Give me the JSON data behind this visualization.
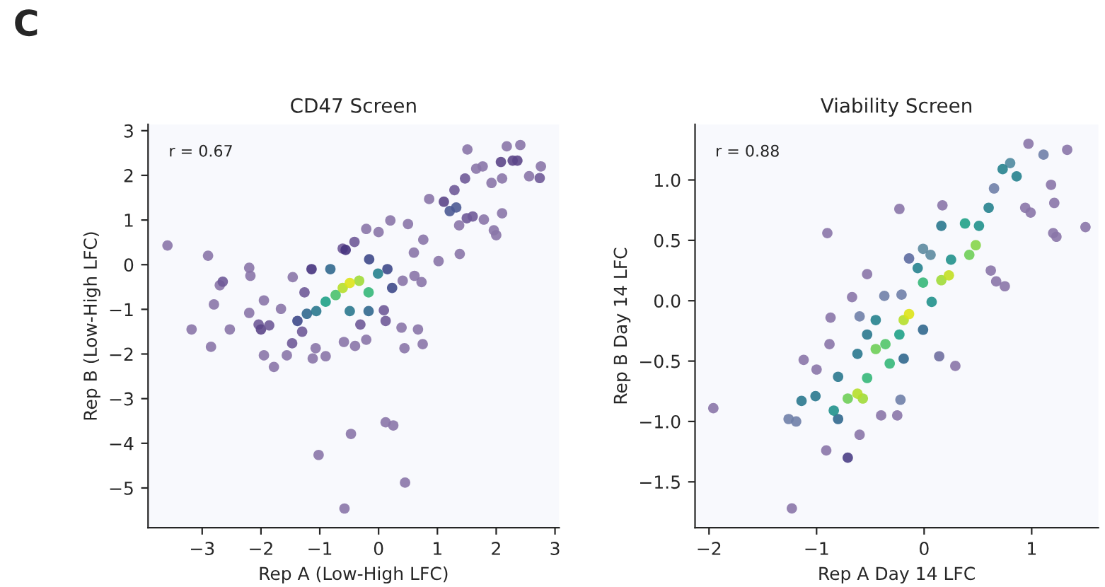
{
  "chart_data": [
    {
      "type": "scatter",
      "title": "CD47 Screen",
      "xlabel": "Rep A (Low-High LFC)",
      "ylabel": "Rep B (Low-High LFC)",
      "annotations": [
        "C",
        "r = 0.67"
      ],
      "marker": "circle",
      "grid": false,
      "legend": false,
      "xlim": [
        -3.92,
        3.07
      ],
      "ylim": [
        -5.89,
        3.14
      ],
      "xticks": [
        {
          "value": -3,
          "label": "−3"
        },
        {
          "value": -2,
          "label": "−2"
        },
        {
          "value": -1,
          "label": "−1"
        },
        0,
        1,
        2,
        3
      ],
      "yticks": [
        {
          "value": -5,
          "label": "−5"
        },
        {
          "value": -4,
          "label": "−4"
        },
        {
          "value": -3,
          "label": "−3"
        },
        {
          "value": -2,
          "label": "−2"
        },
        {
          "value": -1,
          "label": "−1"
        },
        0,
        1,
        2,
        3
      ],
      "series": [
        {
          "x": [
            -3.59,
            -2.9,
            -2.7,
            -2.65,
            -2.8,
            -3.18,
            -2.85,
            -2.53,
            -2.2,
            -2.18,
            -2.2,
            -1.95,
            -2.04,
            -2.0,
            -1.86,
            -1.95,
            -1.78,
            -1.66,
            -1.56,
            -1.46,
            -1.47,
            -1.3,
            -1.12,
            -1.07,
            -0.9,
            -1.26,
            -1.02,
            -0.47,
            -0.58,
            0.12,
            0.25,
            0.45,
            -0.59,
            -0.4,
            -0.21,
            -0.31,
            0.39,
            0.44,
            0.67,
            0.75,
            0.12,
            0.09,
            0.41,
            0.61,
            0.73,
            0.6,
            0.5,
            0.2,
            0.0,
            -0.21,
            -0.41,
            -0.61,
            0.76,
            1.02,
            0.86,
            1.11,
            1.38,
            1.37,
            1.21,
            1.32,
            1.5,
            1.6,
            1.79,
            1.47,
            1.29,
            1.51,
            1.66,
            1.77,
            1.92,
            2.1,
            2.1,
            1.96,
            2.0,
            2.18,
            2.41,
            2.08,
            2.28,
            2.56,
            2.76,
            2.74,
            2.36,
            -0.56,
            -0.16,
            -1.14,
            -0.82,
            -0.49,
            -0.17,
            -1.38,
            0.15,
            -0.01,
            -1.22,
            -1.06,
            -0.9,
            -0.17,
            0.23,
            -0.73,
            -0.33,
            -0.61,
            -0.49
          ],
          "values": [
            0.43,
            0.2,
            -0.46,
            -0.38,
            -0.89,
            -1.45,
            -1.84,
            -1.45,
            -0.07,
            -0.25,
            -1.08,
            -0.8,
            -1.34,
            -1.45,
            -1.36,
            -2.03,
            -2.29,
            -0.99,
            -2.03,
            -0.28,
            -1.76,
            -1.5,
            -2.1,
            -1.87,
            -2.05,
            -0.62,
            -4.26,
            -3.79,
            -5.46,
            -3.53,
            -3.6,
            -4.88,
            -1.73,
            -1.82,
            -1.68,
            -1.34,
            -1.41,
            -1.87,
            -1.45,
            -1.78,
            -1.26,
            -1.02,
            -0.36,
            -0.25,
            -0.39,
            0.27,
            0.91,
            0.99,
            0.73,
            0.8,
            0.51,
            0.36,
            0.56,
            0.08,
            1.47,
            1.41,
            0.24,
            0.88,
            1.2,
            1.28,
            1.04,
            1.08,
            1.01,
            1.93,
            1.67,
            2.58,
            2.15,
            2.2,
            1.83,
            1.93,
            1.15,
            0.77,
            0.66,
            2.65,
            2.68,
            2.3,
            2.33,
            1.98,
            2.2,
            1.94,
            2.33,
            0.33,
            0.12,
            -0.1,
            -0.1,
            -1.04,
            -1.04,
            -1.26,
            -0.1,
            -0.2,
            -1.1,
            -1.04,
            -0.83,
            -0.62,
            -0.52,
            -0.68,
            -0.36,
            -0.52,
            -0.41
          ],
          "colors": [
            "#8a76a8",
            "#8a76a8",
            "#8a76a8",
            "#6f5a98",
            "#8a76a8",
            "#8a76a8",
            "#8a76a8",
            "#8a76a8",
            "#8a76a8",
            "#8a76a8",
            "#8a76a8",
            "#8a76a8",
            "#6f5a98",
            "#5c4688",
            "#6f5a98",
            "#8a76a8",
            "#8a76a8",
            "#8a76a8",
            "#8a76a8",
            "#8a76a8",
            "#6f5a98",
            "#6f5a98",
            "#8a76a8",
            "#8a76a8",
            "#8a76a8",
            "#6f5a98",
            "#8a76a8",
            "#8a76a8",
            "#8a76a8",
            "#8a76a8",
            "#8a76a8",
            "#8a76a8",
            "#8a76a8",
            "#8a76a8",
            "#8a76a8",
            "#6f5a98",
            "#8a76a8",
            "#8a76a8",
            "#8a76a8",
            "#8a76a8",
            "#6f5a98",
            "#6f5a98",
            "#8a76a8",
            "#8a76a8",
            "#8a76a8",
            "#8a76a8",
            "#8a76a8",
            "#8a76a8",
            "#8a76a8",
            "#8a76a8",
            "#6f5a98",
            "#6f5a98",
            "#8a76a8",
            "#8a76a8",
            "#8a76a8",
            "#5c4688",
            "#8a76a8",
            "#8a76a8",
            "#4b5a94",
            "#4b5a94",
            "#6f5a98",
            "#6f5a98",
            "#8a76a8",
            "#6f5a98",
            "#6f5a98",
            "#8a76a8",
            "#8a76a8",
            "#8a76a8",
            "#8a76a8",
            "#8a76a8",
            "#8a76a8",
            "#8a76a8",
            "#8a76a8",
            "#8a76a8",
            "#8a76a8",
            "#5c4688",
            "#5c4688",
            "#8a76a8",
            "#8a76a8",
            "#6f5a98",
            "#5c4688",
            "#46337e",
            "#3e4989",
            "#46337e",
            "#31688e",
            "#2a788e",
            "#31688e",
            "#3e4989",
            "#3e4989",
            "#26828e",
            "#31688e",
            "#2a788e",
            "#1fa187",
            "#35b779",
            "#3e4989",
            "#4ac16d",
            "#a0da39",
            "#b5de2b",
            "#dde318"
          ]
        }
      ]
    },
    {
      "type": "scatter",
      "title": "Viability Screen",
      "xlabel": "Rep A Day 14 LFC",
      "ylabel": "Rep B Day 14 LFC",
      "annotations": [
        "r = 0.88"
      ],
      "marker": "circle",
      "grid": false,
      "legend": false,
      "xlim": [
        -2.13,
        1.62
      ],
      "ylim": [
        -1.88,
        1.46
      ],
      "xticks": [
        {
          "value": -2,
          "label": "−2"
        },
        {
          "value": -1,
          "label": "−1"
        },
        0,
        1
      ],
      "yticks": [
        {
          "value": -1.5,
          "label": "−1.5"
        },
        {
          "value": -1,
          "label": "−1.0"
        },
        {
          "value": -0.5,
          "label": "−0.5"
        },
        {
          "value": 0,
          "label": "0.0"
        },
        0.5,
        {
          "value": 1,
          "label": "1.0"
        }
      ],
      "series": [
        {
          "x": [
            -1.96,
            -1.23,
            -0.91,
            -0.71,
            -0.6,
            -1.26,
            -1.19,
            -1.12,
            -1.0,
            -0.9,
            -0.53,
            -0.67,
            -0.87,
            -0.88,
            -0.6,
            -0.37,
            -0.23,
            0.17,
            -0.21,
            -0.14,
            -0.01,
            0.06,
            0.29,
            0.14,
            -0.4,
            -0.25,
            -0.22,
            0.62,
            0.67,
            0.75,
            0.97,
            1.33,
            1.5,
            1.23,
            1.2,
            1.21,
            1.18,
            0.94,
            0.99,
            0.65,
            0.8,
            1.11,
            -0.8,
            -0.19,
            -0.01,
            -0.53,
            -0.45,
            0.16,
            0.07,
            0.25,
            0.51,
            -0.06,
            -0.62,
            -0.8,
            -1.14,
            -1.01,
            -0.84,
            0.86,
            0.73,
            0.6,
            0.38,
            -0.23,
            -0.01,
            -0.53,
            -0.32,
            -0.36,
            -0.45,
            0.42,
            0.48,
            0.16,
            0.23,
            -0.19,
            -0.14,
            -0.71,
            -0.57,
            -0.62
          ],
          "values": [
            -0.89,
            -1.72,
            -1.24,
            -1.3,
            -1.11,
            -0.98,
            -1.0,
            -0.49,
            -0.57,
            0.56,
            0.22,
            0.03,
            -0.14,
            -0.36,
            -0.13,
            0.04,
            0.76,
            0.79,
            0.05,
            0.35,
            0.43,
            0.38,
            -0.54,
            -0.46,
            -0.95,
            -0.95,
            -0.82,
            0.25,
            0.16,
            0.12,
            1.3,
            1.25,
            0.61,
            0.53,
            0.56,
            0.81,
            0.96,
            0.77,
            0.73,
            0.93,
            1.14,
            1.21,
            -0.98,
            -0.48,
            -0.24,
            -0.28,
            -0.16,
            0.62,
            -0.01,
            0.34,
            0.62,
            0.27,
            -0.44,
            -0.63,
            -0.83,
            -0.79,
            -0.91,
            1.03,
            1.09,
            0.77,
            0.64,
            -0.28,
            0.15,
            -0.64,
            -0.52,
            -0.36,
            -0.4,
            0.38,
            0.46,
            0.17,
            0.21,
            -0.16,
            -0.11,
            -0.81,
            -0.81,
            -0.77
          ],
          "colors": [
            "#8a76a8",
            "#8a76a8",
            "#8a76a8",
            "#4b3f86",
            "#8a76a8",
            "#6f7fa8",
            "#6f7fa8",
            "#8a76a8",
            "#8a76a8",
            "#8a76a8",
            "#8a76a8",
            "#8a76a8",
            "#8a76a8",
            "#8a76a8",
            "#6f7fa8",
            "#6f7fa8",
            "#8a76a8",
            "#8a76a8",
            "#6f7fa8",
            "#5c6aa0",
            "#5c8aa0",
            "#5c8aa0",
            "#8a76a8",
            "#6f6fa0",
            "#8a76a8",
            "#8a76a8",
            "#6f7fa8",
            "#8a76a8",
            "#8a76a8",
            "#8a76a8",
            "#8a76a8",
            "#8a76a8",
            "#8a76a8",
            "#8a76a8",
            "#8a76a8",
            "#8a76a8",
            "#8a76a8",
            "#8a76a8",
            "#8a76a8",
            "#6f7fa8",
            "#4f8aa0",
            "#6f7fa8",
            "#31688e",
            "#31688e",
            "#31688e",
            "#2a788e",
            "#26828e",
            "#2a788e",
            "#21918c",
            "#21918c",
            "#21918c",
            "#26828e",
            "#2a788e",
            "#2a788e",
            "#2a788e",
            "#2a788e",
            "#21918c",
            "#26828e",
            "#26828e",
            "#26828e",
            "#1fa187",
            "#1fa187",
            "#35b779",
            "#35b779",
            "#35b779",
            "#52c569",
            "#6ece58",
            "#6ece58",
            "#86d549",
            "#a0da39",
            "#c2df23",
            "#b5de2b",
            "#dde318",
            "#6ece58",
            "#a0da39",
            "#b5de2b"
          ]
        }
      ]
    }
  ]
}
